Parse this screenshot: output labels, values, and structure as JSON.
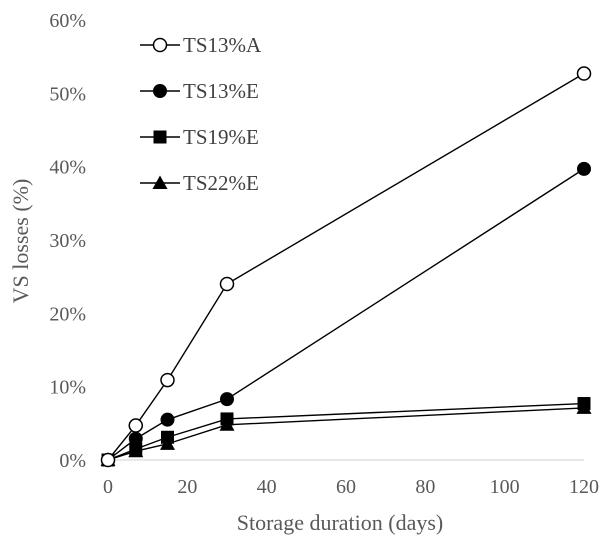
{
  "chart_data": {
    "type": "line",
    "title": "",
    "xlabel": "Storage duration (days)",
    "ylabel": "VS losses (%)",
    "xlim": [
      0,
      120
    ],
    "ylim": [
      0,
      60
    ],
    "x_ticks": [
      0,
      20,
      40,
      60,
      80,
      100,
      120
    ],
    "y_ticks": [
      {
        "value": 0,
        "label": "0%"
      },
      {
        "value": 10,
        "label": "10%"
      },
      {
        "value": 20,
        "label": "20%"
      },
      {
        "value": 30,
        "label": "30%"
      },
      {
        "value": 40,
        "label": "40%"
      },
      {
        "value": 50,
        "label": "50%"
      },
      {
        "value": 60,
        "label": "60%"
      }
    ],
    "grid": false,
    "legend_position": "top-left",
    "series": [
      {
        "name": "TS13%A",
        "marker": "circle-open",
        "x": [
          0,
          7,
          15,
          30,
          120
        ],
        "y": [
          0,
          4.7,
          10.9,
          24.0,
          52.7
        ]
      },
      {
        "name": "TS13%E",
        "marker": "circle",
        "x": [
          0,
          7,
          15,
          30,
          120
        ],
        "y": [
          0,
          2.9,
          5.5,
          8.3,
          39.7
        ]
      },
      {
        "name": "TS19%E",
        "marker": "square",
        "x": [
          0,
          7,
          15,
          30,
          120
        ],
        "y": [
          0,
          1.5,
          3.1,
          5.6,
          7.7
        ]
      },
      {
        "name": "TS22%E",
        "marker": "triangle",
        "x": [
          0,
          7,
          15,
          30,
          120
        ],
        "y": [
          0,
          1.2,
          2.2,
          4.8,
          7.1
        ]
      }
    ]
  }
}
